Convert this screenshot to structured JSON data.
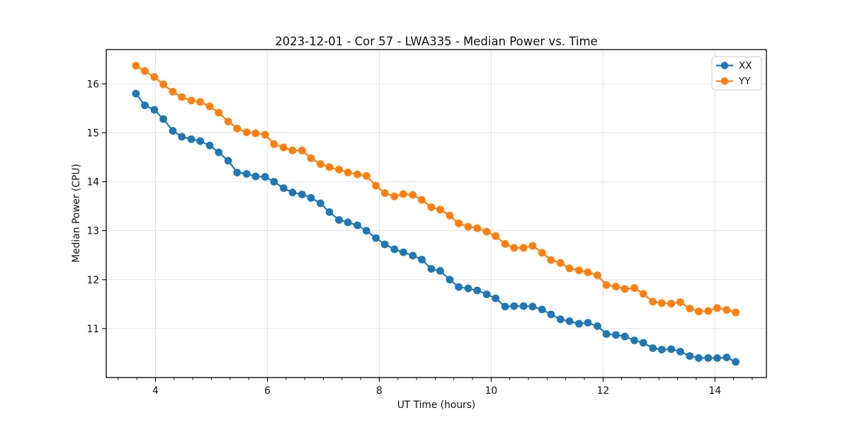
{
  "chart_data": {
    "type": "line",
    "title": "2023-12-01 - Cor 57 - LWA335 - Median Power vs. Time",
    "xlabel": "UT Time (hours)",
    "ylabel": "Median Power (CPU)",
    "xlim": [
      3.12,
      14.92
    ],
    "ylim": [
      10.0,
      16.7
    ],
    "xticks": [
      4,
      6,
      8,
      10,
      12,
      14
    ],
    "yticks": [
      11,
      12,
      13,
      14,
      15,
      16
    ],
    "x_minor_step": 0.33333,
    "grid": true,
    "legend_position": "upper right",
    "x": [
      3.65,
      3.81,
      3.98,
      4.14,
      4.31,
      4.47,
      4.64,
      4.8,
      4.97,
      5.13,
      5.3,
      5.46,
      5.63,
      5.79,
      5.96,
      6.12,
      6.29,
      6.45,
      6.62,
      6.78,
      6.95,
      7.11,
      7.28,
      7.44,
      7.61,
      7.77,
      7.94,
      8.1,
      8.27,
      8.43,
      8.6,
      8.76,
      8.93,
      9.09,
      9.26,
      9.42,
      9.59,
      9.75,
      9.92,
      10.08,
      10.25,
      10.41,
      10.58,
      10.74,
      10.91,
      11.07,
      11.24,
      11.4,
      11.57,
      11.73,
      11.9,
      12.06,
      12.23,
      12.39,
      12.56,
      12.72,
      12.89,
      13.05,
      13.22,
      13.38,
      13.55,
      13.71,
      13.88,
      14.04,
      14.21,
      14.37
    ],
    "series": [
      {
        "name": "XX",
        "color": "#1f77b4",
        "marker": "circle",
        "values": [
          15.8,
          15.56,
          15.47,
          15.28,
          15.04,
          14.92,
          14.87,
          14.83,
          14.74,
          14.6,
          14.43,
          14.19,
          14.16,
          14.11,
          14.1,
          14.0,
          13.87,
          13.78,
          13.74,
          13.67,
          13.56,
          13.38,
          13.22,
          13.17,
          13.11,
          13.0,
          12.85,
          12.72,
          12.62,
          12.56,
          12.49,
          12.41,
          12.22,
          12.18,
          12.0,
          11.85,
          11.82,
          11.78,
          11.7,
          11.62,
          11.45,
          11.46,
          11.46,
          11.45,
          11.39,
          11.29,
          11.19,
          11.15,
          11.1,
          11.12,
          11.05,
          10.89,
          10.87,
          10.84,
          10.76,
          10.71,
          10.6,
          10.57,
          10.58,
          10.53,
          10.44,
          10.4,
          10.4,
          10.4,
          10.41,
          10.32
        ]
      },
      {
        "name": "YY",
        "color": "#ff7f0e",
        "marker": "circle",
        "values": [
          16.37,
          16.26,
          16.14,
          15.99,
          15.84,
          15.73,
          15.66,
          15.63,
          15.54,
          15.41,
          15.23,
          15.09,
          15.01,
          14.99,
          14.96,
          14.77,
          14.7,
          14.64,
          14.64,
          14.48,
          14.36,
          14.3,
          14.25,
          14.19,
          14.15,
          14.12,
          13.92,
          13.77,
          13.7,
          13.75,
          13.73,
          13.63,
          13.48,
          13.43,
          13.31,
          13.15,
          13.08,
          13.05,
          12.98,
          12.89,
          12.73,
          12.65,
          12.65,
          12.69,
          12.55,
          12.4,
          12.34,
          12.23,
          12.19,
          12.15,
          12.09,
          11.89,
          11.86,
          11.81,
          11.83,
          11.71,
          11.55,
          11.52,
          11.51,
          11.54,
          11.41,
          11.35,
          11.36,
          11.42,
          11.38,
          11.33
        ]
      }
    ]
  },
  "style": {
    "grid_color": "#e5e5e5",
    "spine_color": "#000000",
    "tick_color": "#000000",
    "background": "#ffffff",
    "legend_border": "#cccccc",
    "legend_background": "#ffffff"
  }
}
